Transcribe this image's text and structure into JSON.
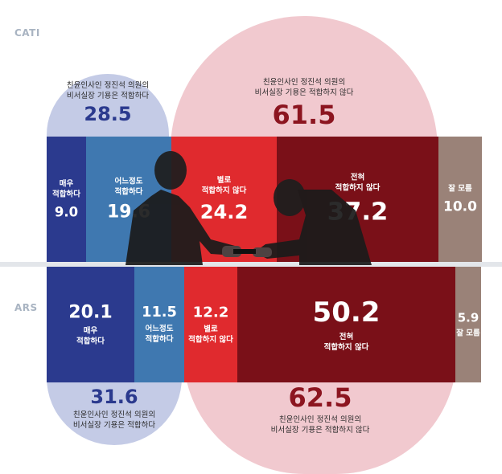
{
  "colors": {
    "very_suitable": "#2b3a8e",
    "somewhat_suitable": "#3f78b0",
    "not_very_suitable": "#e02a2e",
    "not_suitable_at_all": "#7a1018",
    "dont_know": "#9a8278",
    "suitable_blob": "#c4cbe6",
    "unsuitable_blob": "#f1c9cf",
    "suitable_text": "#2b3a8e",
    "unsuitable_text": "#8c1520"
  },
  "chart_data": [
    {
      "type": "bar",
      "mode": "CATI",
      "categories": [
        "매우\n적합하다",
        "어느정도\n적합하다",
        "별로\n적합하지 않다",
        "전혀\n적합하지 않다",
        "잘 모름"
      ],
      "values": [
        9.0,
        19.6,
        24.2,
        37.2,
        10.0
      ],
      "value_labels": [
        "9.0",
        "19.6",
        "24.2",
        "37.2",
        "10.0"
      ],
      "summary": {
        "suitable": {
          "text": "친윤인사인 정진석 의원의\n비서실장 기용은 적합하다",
          "value": "28.5"
        },
        "unsuitable": {
          "text": "친윤인사인 정진석 의원의\n비서실장 기용은 적합하지 않다",
          "value": "61.5"
        }
      }
    },
    {
      "type": "bar",
      "mode": "ARS",
      "categories": [
        "매우\n적합하다",
        "어느정도\n적합하다",
        "별로\n적합하지 않다",
        "전혀\n적합하지 않다",
        "잘 모름"
      ],
      "values": [
        20.1,
        11.5,
        12.2,
        50.2,
        5.9
      ],
      "value_labels": [
        "20.1",
        "11.5",
        "12.2",
        "50.2",
        "5.9"
      ],
      "summary": {
        "suitable": {
          "text": "친윤인사인 정진석 의원의\n비서실장 기용은 적합하다",
          "value": "31.6"
        },
        "unsuitable": {
          "text": "친윤인사인 정진석 의원의\n비서실장 기용은 적합하지 않다",
          "value": "62.5"
        }
      }
    }
  ]
}
